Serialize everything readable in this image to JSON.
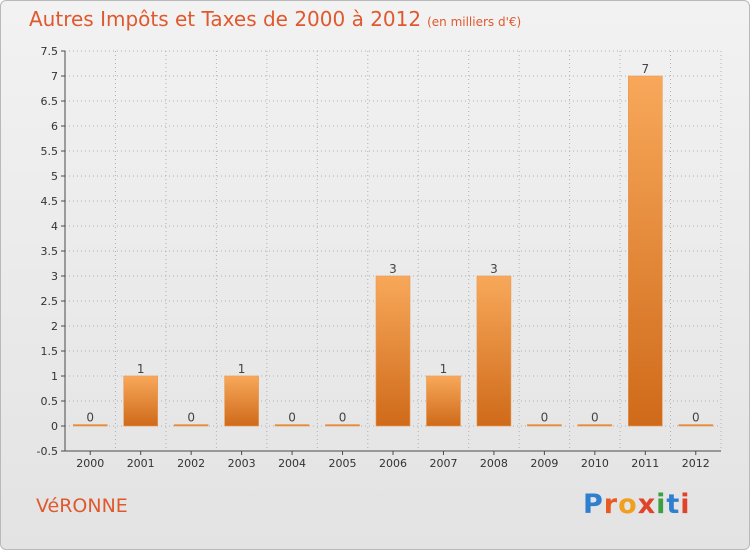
{
  "title": "Autres Impôts et Taxes de 2000 à 2012",
  "subtitle": "(en milliers d'€)",
  "location": "VéRONNE",
  "brand": {
    "name": "Proxiti",
    "letters": [
      {
        "ch": "P",
        "color": "#2e7fd0"
      },
      {
        "ch": "r",
        "color": "#e85a24"
      },
      {
        "ch": "o",
        "color": "#f0a020"
      },
      {
        "ch": "x",
        "color": "#e0422a"
      },
      {
        "ch": "i",
        "color": "#3aa040"
      },
      {
        "ch": "t",
        "color": "#2e7fd0"
      },
      {
        "ch": "i",
        "color": "#e0422a"
      }
    ]
  },
  "colors": {
    "title": "#e0592e",
    "bar_light": "#f8a85a",
    "bar_dark": "#cf6a1a",
    "grid": "#b0b0b0",
    "axis": "#4a4a4a"
  },
  "chart_data": {
    "type": "bar",
    "categories": [
      "2000",
      "2001",
      "2002",
      "2003",
      "2004",
      "2005",
      "2006",
      "2007",
      "2008",
      "2009",
      "2010",
      "2011",
      "2012"
    ],
    "values": [
      0,
      1,
      0,
      1,
      0,
      0,
      3,
      1,
      3,
      0,
      0,
      7,
      0
    ],
    "data_labels": [
      "0",
      "1",
      "0",
      "1",
      "0",
      "0",
      "3",
      "1",
      "3",
      "0",
      "0",
      "7",
      "0"
    ],
    "yticks": [
      "-0.5",
      "0",
      "0.5",
      "1",
      "1.5",
      "2",
      "2.5",
      "3",
      "3.5",
      "4",
      "4.5",
      "5",
      "5.5",
      "6",
      "6.5",
      "7",
      "7.5"
    ],
    "ylim": [
      -0.5,
      7.5
    ],
    "grid": true,
    "xlabel": "",
    "ylabel": ""
  }
}
